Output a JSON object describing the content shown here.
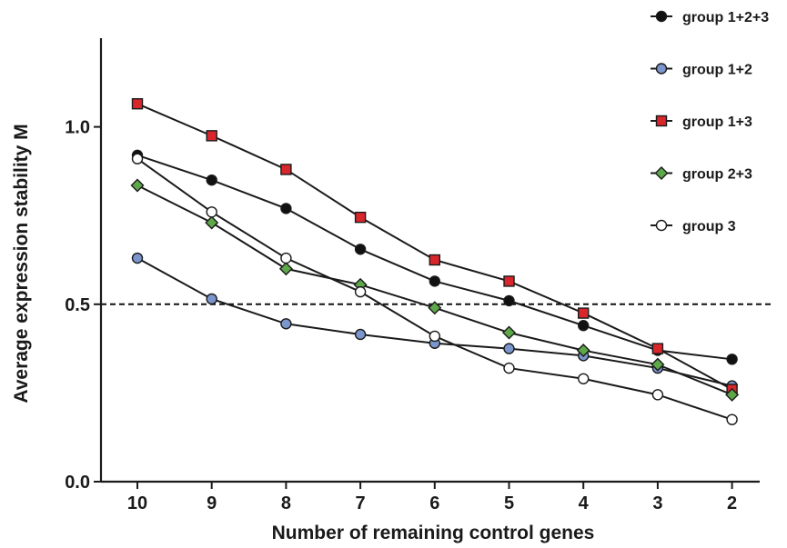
{
  "chart_data": {
    "type": "line",
    "title": "",
    "xlabel": "Number of remaining control genes",
    "ylabel": "Average expression stability M",
    "categories": [
      "10",
      "9",
      "8",
      "7",
      "6",
      "5",
      "4",
      "3",
      "2"
    ],
    "ylim": [
      0,
      1.25
    ],
    "yticks": [
      "0.0",
      "0.5",
      "1.0"
    ],
    "ytick_values": [
      0,
      0.5,
      1.0
    ],
    "reference_line": 0.5,
    "grid": false,
    "legend_position": "top-right",
    "series": [
      {
        "name": "group 1+2+3",
        "marker": "circle",
        "fill": "#111111",
        "values": [
          0.92,
          0.85,
          0.77,
          0.655,
          0.565,
          0.51,
          0.44,
          0.37,
          0.345
        ]
      },
      {
        "name": "group 1+2",
        "marker": "circle",
        "fill": "#7b96cc",
        "values": [
          0.63,
          0.515,
          0.445,
          0.415,
          0.39,
          0.375,
          0.355,
          0.32,
          0.27
        ]
      },
      {
        "name": "group 1+3",
        "marker": "square",
        "fill": "#d9262c",
        "values": [
          1.065,
          0.975,
          0.88,
          0.745,
          0.625,
          0.565,
          0.475,
          0.375,
          0.26
        ]
      },
      {
        "name": "group 2+3",
        "marker": "diamond",
        "fill": "#5ea84a",
        "values": [
          0.835,
          0.73,
          0.6,
          0.555,
          0.49,
          0.42,
          0.37,
          0.33,
          0.245
        ]
      },
      {
        "name": "group 3",
        "marker": "circle",
        "fill": "#ffffff",
        "values": [
          0.91,
          0.76,
          0.63,
          0.535,
          0.41,
          0.32,
          0.29,
          0.245,
          0.175
        ]
      }
    ]
  }
}
